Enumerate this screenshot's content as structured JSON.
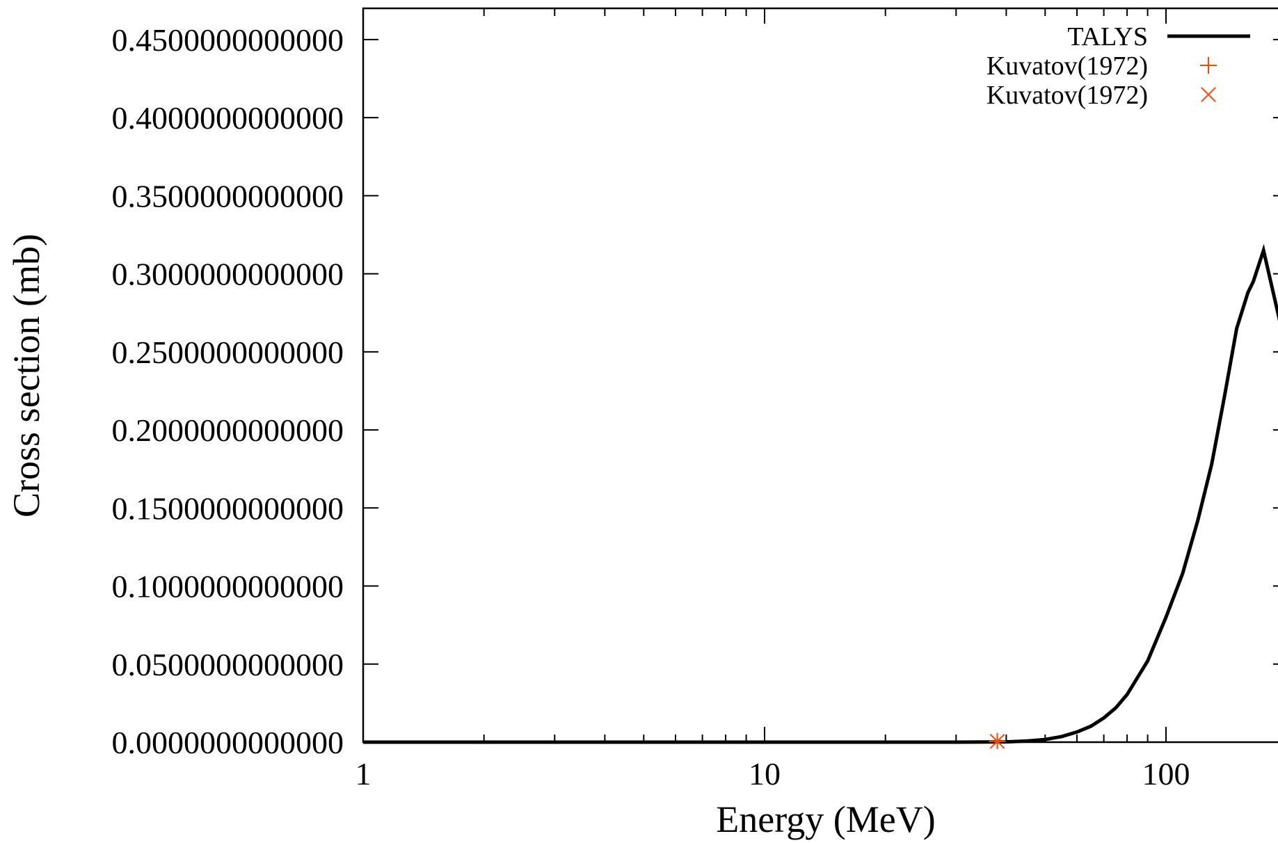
{
  "chart_data": {
    "type": "line",
    "title": "",
    "xlabel": "Energy (MeV)",
    "ylabel": "Cross section (mb)",
    "x_scale": "log",
    "xlim": [
      1,
      200
    ],
    "ylim": [
      0,
      0.47
    ],
    "grid": false,
    "legend_position": "top-right",
    "x_ticks": [
      {
        "value": 1,
        "label": "1"
      },
      {
        "value": 10,
        "label": "10"
      },
      {
        "value": 100,
        "label": "100"
      }
    ],
    "y_ticks": [
      {
        "value": 0.0,
        "label": "0.0000000000000"
      },
      {
        "value": 0.05,
        "label": "0.0500000000000"
      },
      {
        "value": 0.1,
        "label": "0.1000000000000"
      },
      {
        "value": 0.15,
        "label": "0.1500000000000"
      },
      {
        "value": 0.2,
        "label": "0.2000000000000"
      },
      {
        "value": 0.25,
        "label": "0.2500000000000"
      },
      {
        "value": 0.3,
        "label": "0.3000000000000"
      },
      {
        "value": 0.35,
        "label": "0.3500000000000"
      },
      {
        "value": 0.4,
        "label": "0.4000000000000"
      },
      {
        "value": 0.45,
        "label": "0.4500000000000"
      }
    ],
    "series": [
      {
        "name": "TALYS",
        "style": "line",
        "color": "#000000",
        "x": [
          1,
          10,
          30,
          40,
          45,
          50,
          55,
          60,
          65,
          70,
          75,
          80,
          90,
          100,
          110,
          120,
          130,
          140,
          150,
          160,
          165,
          175,
          200
        ],
        "y": [
          0,
          0,
          0,
          0.0002,
          0.0007,
          0.0017,
          0.0036,
          0.0065,
          0.0102,
          0.0155,
          0.022,
          0.0305,
          0.052,
          0.08,
          0.108,
          0.142,
          0.178,
          0.222,
          0.265,
          0.288,
          0.295,
          0.315,
          0.25
        ]
      },
      {
        "name": "Kuvatov(1972)",
        "style": "plus",
        "color": "#ff4500",
        "x": [
          38
        ],
        "y": [
          0.0005
        ]
      },
      {
        "name": "Kuvatov(1972)",
        "style": "cross",
        "color": "#ff4500",
        "x": [
          38
        ],
        "y": [
          0.0005
        ]
      }
    ]
  }
}
